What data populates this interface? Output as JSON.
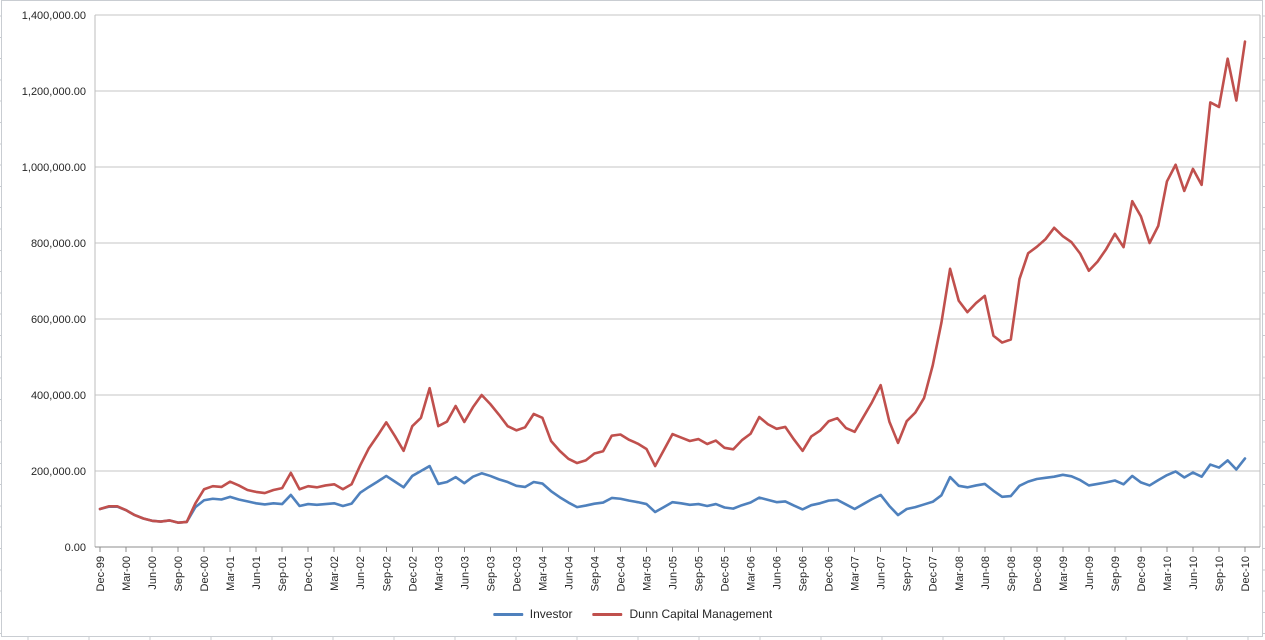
{
  "chart_data": {
    "type": "line",
    "title": "",
    "xlabel": "",
    "ylabel": "",
    "grid": "horizontal",
    "legend_position": "bottom-center",
    "ylim": [
      0,
      1400000
    ],
    "y_tick_step": 200000,
    "y_tick_labels": [
      "0.00",
      "200,000.00",
      "400,000.00",
      "600,000.00",
      "800,000.00",
      "1,000,000.00",
      "1,200,000.00",
      "1,400,000.00"
    ],
    "x_points_per_tick": 3,
    "n_points": 133,
    "x_tick_labels": [
      "Dec-99",
      "Mar-00",
      "Jun-00",
      "Sep-00",
      "Dec-00",
      "Mar-01",
      "Jun-01",
      "Sep-01",
      "Dec-01",
      "Mar-02",
      "Jun-02",
      "Sep-02",
      "Dec-02",
      "Mar-03",
      "Jun-03",
      "Sep-03",
      "Dec-03",
      "Mar-04",
      "Jun-04",
      "Sep-04",
      "Dec-04",
      "Mar-05",
      "Jun-05",
      "Sep-05",
      "Dec-05",
      "Mar-06",
      "Jun-06",
      "Sep-06",
      "Dec-06",
      "Mar-07",
      "Jun-07",
      "Sep-07",
      "Dec-07",
      "Mar-08",
      "Jun-08",
      "Sep-08",
      "Dec-08",
      "Mar-09",
      "Jun-09",
      "Sep-09",
      "Dec-09",
      "Mar-10",
      "Jun-10",
      "Sep-10",
      "Dec-10"
    ],
    "colors": {
      "grid": "#C6C6C6",
      "axis": "#8C8C8C",
      "plot_border": "#BDBDBD",
      "frame": "#C9CDD2",
      "text": "#262626"
    },
    "series": [
      {
        "name": "Investor",
        "color": "#4F81BD",
        "values": [
          100000,
          106000,
          106000,
          97000,
          84000,
          75000,
          69000,
          67000,
          70000,
          64000,
          66000,
          105000,
          123000,
          127000,
          125000,
          132000,
          125000,
          120000,
          115000,
          112000,
          115000,
          113000,
          137000,
          108000,
          113000,
          111000,
          113000,
          115000,
          108000,
          114000,
          143000,
          158000,
          172000,
          187000,
          172000,
          157000,
          187000,
          200000,
          213000,
          166000,
          171000,
          184000,
          168000,
          185000,
          194000,
          187000,
          178000,
          171000,
          161000,
          158000,
          171000,
          167000,
          147000,
          131000,
          117000,
          105000,
          109000,
          114000,
          117000,
          129000,
          127000,
          122000,
          118000,
          113000,
          92000,
          105000,
          118000,
          115000,
          111000,
          113000,
          108000,
          113000,
          104000,
          101000,
          110000,
          117000,
          130000,
          124000,
          118000,
          120000,
          109000,
          99000,
          110000,
          115000,
          122000,
          124000,
          112000,
          100000,
          113000,
          126000,
          137000,
          108000,
          84000,
          100000,
          105000,
          112000,
          119000,
          136000,
          184000,
          161000,
          157000,
          162000,
          166000,
          148000,
          132000,
          134000,
          161000,
          172000,
          179000,
          182000,
          185000,
          190000,
          186000,
          176000,
          162000,
          166000,
          170000,
          175000,
          165000,
          187000,
          170000,
          162000,
          176000,
          189000,
          199000,
          183000,
          196000,
          185000,
          217000,
          209000,
          228000,
          204000,
          233000
        ]
      },
      {
        "name": "Dunn Capital Management",
        "color": "#C0504D",
        "values": [
          100000,
          107000,
          107000,
          97000,
          84000,
          75000,
          69000,
          67000,
          70000,
          64000,
          66000,
          115000,
          152000,
          160000,
          158000,
          172000,
          162000,
          150000,
          145000,
          142000,
          150000,
          155000,
          195000,
          152000,
          160000,
          157000,
          162000,
          165000,
          152000,
          165000,
          215000,
          260000,
          293000,
          328000,
          292000,
          253000,
          318000,
          340000,
          418000,
          318000,
          330000,
          371000,
          329000,
          368000,
          400000,
          376000,
          348000,
          318000,
          307000,
          315000,
          350000,
          340000,
          279000,
          253000,
          232000,
          221000,
          228000,
          246000,
          252000,
          293000,
          296000,
          282000,
          272000,
          258000,
          213000,
          255000,
          297000,
          288000,
          279000,
          284000,
          271000,
          280000,
          261000,
          257000,
          281000,
          298000,
          342000,
          323000,
          311000,
          316000,
          283000,
          253000,
          291000,
          306000,
          331000,
          339000,
          313000,
          303000,
          342000,
          381000,
          426000,
          330000,
          274000,
          331000,
          354000,
          392000,
          478000,
          590000,
          732000,
          648000,
          618000,
          642000,
          661000,
          556000,
          538000,
          546000,
          705000,
          773000,
          790000,
          810000,
          840000,
          818000,
          802000,
          772000,
          727000,
          751000,
          784000,
          824000,
          789000,
          910000,
          870000,
          800000,
          845000,
          962000,
          1006000,
          937000,
          995000,
          953000,
          1170000,
          1158000,
          1285000,
          1175000,
          1330000
        ]
      }
    ]
  }
}
